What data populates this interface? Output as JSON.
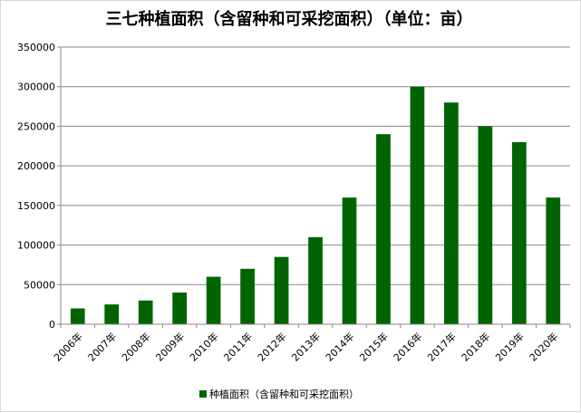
{
  "chart_data": {
    "type": "bar",
    "title": "三七种植面积（含留种和可采挖面积）（单位：亩）",
    "xlabel": "",
    "ylabel": "",
    "categories": [
      "2006年",
      "2007年",
      "2008年",
      "2009年",
      "2010年",
      "2011年",
      "2012年",
      "2013年",
      "2014年",
      "2015年",
      "2016年",
      "2017年",
      "2018年",
      "2019年",
      "2020年"
    ],
    "series": [
      {
        "name": "种植面积（含留种和可采挖面积）",
        "values": [
          20000,
          25000,
          30000,
          40000,
          60000,
          70000,
          85000,
          110000,
          160000,
          240000,
          300000,
          280000,
          250000,
          230000,
          160000
        ]
      }
    ],
    "ylim": [
      0,
      350000
    ],
    "yticks": [
      "0",
      "50000",
      "100000",
      "150000",
      "200000",
      "250000",
      "300000",
      "350000"
    ],
    "grid": true,
    "legend_position": "bottom",
    "colors": {
      "bar": "#006400",
      "grid": "#888888",
      "axis": "#888888"
    }
  }
}
